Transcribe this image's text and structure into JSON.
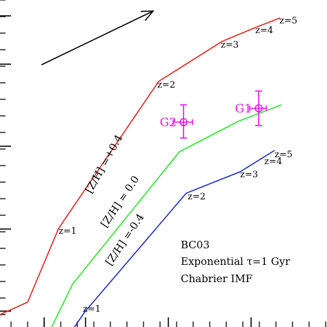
{
  "chart_data": {
    "type": "line",
    "title": "",
    "xlabel": "",
    "ylabel": "",
    "xlim": [
      0,
      474
    ],
    "ylim": [
      0,
      474
    ],
    "grid": false,
    "series": [
      {
        "name": "[Z/H] =+0.4",
        "color": "#e8231c",
        "points": [
          [
            0,
            18
          ],
          [
            40,
            36
          ],
          [
            85,
            143
          ],
          [
            230,
            356
          ],
          [
            322,
            414
          ],
          [
            370,
            434
          ],
          [
            406,
            448
          ]
        ],
        "redshift_labels": [
          {
            "text": "z=1",
            "x": 85,
            "y": 140
          },
          {
            "text": "z=2",
            "x": 228,
            "y": 352
          },
          {
            "text": "z=3",
            "x": 320,
            "y": 410
          },
          {
            "text": "z=4",
            "x": 370,
            "y": 431
          },
          {
            "text": "z=5",
            "x": 405,
            "y": 445
          }
        ]
      },
      {
        "name": "[Z/H] = 0.0",
        "color": "#22ee22",
        "points": [
          [
            75,
            0
          ],
          [
            105,
            62
          ],
          [
            260,
            254
          ],
          [
            345,
            298
          ],
          [
            408,
            322
          ]
        ],
        "redshift_labels": []
      },
      {
        "name": "[Z/H] =-0.4",
        "color": "#1c28cc",
        "points": [
          [
            108,
            0
          ],
          [
            123,
            22
          ],
          [
            270,
            194
          ],
          [
            348,
            225
          ],
          [
            398,
            256
          ]
        ],
        "redshift_labels": [
          {
            "text": "z=1",
            "x": 120,
            "y": 27
          },
          {
            "text": "z=2",
            "x": 272,
            "y": 190
          },
          {
            "text": "z=3",
            "x": 348,
            "y": 222
          },
          {
            "text": "z=4",
            "x": 383,
            "y": 241
          },
          {
            "text": "z=5",
            "x": 398,
            "y": 251
          }
        ]
      }
    ],
    "galaxies": [
      {
        "name": "G2",
        "x": 266,
        "y": 297,
        "xerr": [
          15,
          13
        ],
        "yerr": [
          25,
          23
        ],
        "color": "#ee11ee"
      },
      {
        "name": "G1",
        "x": 375,
        "y": 317,
        "xerr": [
          13,
          11
        ],
        "yerr": [
          25,
          25
        ],
        "color": "#ee11ee"
      }
    ],
    "annotation_lines": [
      "BC03",
      "Exponential τ=1 Gyr",
      "Chabrier IMF"
    ],
    "arrow": {
      "from": [
        60,
        380
      ],
      "to": [
        222,
        458
      ],
      "color": "#000000"
    }
  }
}
